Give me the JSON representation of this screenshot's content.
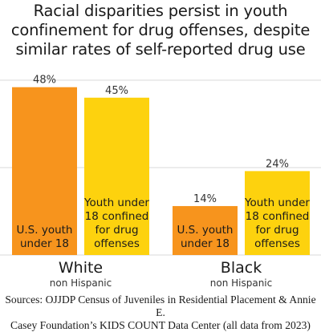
{
  "title_lines": [
    "Racial disparities persist in youth",
    "confinement for drug offenses, despite",
    "similar rates of self-reported drug use"
  ],
  "sources_lines": [
    "Sources: OJJDP Census of Juveniles in Residential Placement & Annie E.",
    "Casey Foundation’s KIDS COUNT Data Center (all data from 2023)"
  ],
  "chart_data": {
    "type": "bar",
    "categories": [
      {
        "label": "White",
        "sublabel": "non Hispanic"
      },
      {
        "label": "Black",
        "sublabel": "non Hispanic"
      }
    ],
    "series": [
      {
        "bar_text": [
          "U.S. youth",
          "under 18"
        ],
        "color": "#f7941d",
        "values": [
          48,
          14
        ],
        "value_labels": [
          "48%",
          "14%"
        ]
      },
      {
        "bar_text": [
          "Youth under",
          "18 confined",
          "for drug",
          "offenses"
        ],
        "color": "#fdd20e",
        "values": [
          45,
          24
        ],
        "value_labels": [
          "45%",
          "24%"
        ]
      }
    ],
    "ylim": [
      0,
      50
    ],
    "gridlines": [
      0,
      25,
      50
    ],
    "grid_color": "#d9d9d9"
  }
}
